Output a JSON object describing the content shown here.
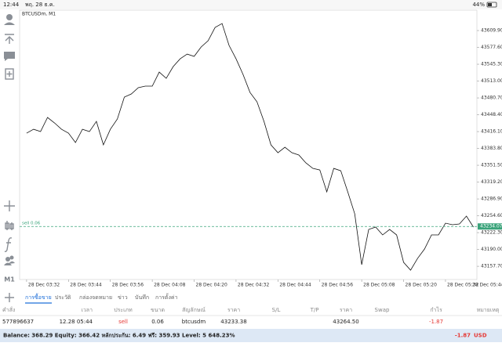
{
  "status_bar": {
    "time": "12:44",
    "date": "พฤ. 28 ธ.ค.",
    "battery": "44%"
  },
  "sidebar": {
    "timeframe": "M1"
  },
  "chart_data": {
    "type": "line",
    "title": "BTCUSDm, M1",
    "color": "#111111",
    "x": [
      0,
      2,
      4,
      6,
      8,
      10,
      12,
      14,
      16,
      18,
      20,
      22,
      24,
      26,
      28,
      30,
      32,
      34,
      36,
      38,
      40,
      42,
      44,
      46,
      48,
      50,
      52,
      54,
      56,
      58,
      60,
      62,
      64,
      66,
      68,
      70,
      72,
      74,
      76,
      78,
      80,
      82,
      84,
      86,
      88,
      90,
      92,
      94,
      96,
      98,
      100,
      102,
      104,
      106,
      108,
      110,
      112,
      114,
      116,
      118,
      120,
      122,
      124,
      126,
      128
    ],
    "values": [
      43413.1,
      43420.6,
      43416.1,
      43443.2,
      43432.7,
      43420.6,
      43413.1,
      43395.1,
      43420.6,
      43416.1,
      43435.7,
      43390.6,
      43420.6,
      43440.2,
      43482.2,
      43488.2,
      43500.3,
      43503.3,
      43503.3,
      43530.3,
      43518.3,
      43540.8,
      43555.8,
      43564.8,
      43560.3,
      43578.4,
      43590.4,
      43615.9,
      43623.4,
      43581.4,
      43555.8,
      43525.8,
      43491.2,
      43473.2,
      43435.7,
      43390.6,
      43375.6,
      43386.1,
      43375.6,
      43371.1,
      43356.1,
      43345.5,
      43342.5,
      43300.5,
      43345.5,
      43341.0,
      43300.5,
      43258.4,
      43160.8,
      43228.4,
      43232.9,
      43217.9,
      43228.4,
      43217.9,
      43165.3,
      43150.3,
      43172.8,
      43190.8,
      43217.9,
      43217.9,
      43240.4,
      43237.4,
      43238.9,
      43253.9,
      43232.9
    ],
    "xlim": [
      -2,
      129
    ],
    "xticks": [
      {
        "value": 0,
        "label": "28 Dec 03:32"
      },
      {
        "value": 12,
        "label": "28 Dec 03:44"
      },
      {
        "value": 24,
        "label": "28 Dec 03:56"
      },
      {
        "value": 36,
        "label": "28 Dec 04:08"
      },
      {
        "value": 48,
        "label": "28 Dec 04:20"
      },
      {
        "value": 60,
        "label": "28 Dec 04:32"
      },
      {
        "value": 72,
        "label": "28 Dec 04:44"
      },
      {
        "value": 84,
        "label": "28 Dec 04:56"
      },
      {
        "value": 96,
        "label": "28 Dec 05:08"
      },
      {
        "value": 108,
        "label": "28 Dec 05:20"
      },
      {
        "value": 120,
        "label": "28 Dec 05:32"
      },
      {
        "value": 132,
        "label": "28 Dec 05:44"
      }
    ],
    "ylim": [
      43132.3,
      43649
    ],
    "yticks": [
      {
        "value": 43609.9,
        "label": "43609.90"
      },
      {
        "value": 43577.6,
        "label": "43577.60"
      },
      {
        "value": 43545.3,
        "label": "43545.30"
      },
      {
        "value": 43513.0,
        "label": "43513.00"
      },
      {
        "value": 43480.7,
        "label": "43480.70"
      },
      {
        "value": 43448.4,
        "label": "43448.40"
      },
      {
        "value": 43416.1,
        "label": "43416.10"
      },
      {
        "value": 43383.8,
        "label": "43383.80"
      },
      {
        "value": 43351.5,
        "label": "43351.50"
      },
      {
        "value": 43319.2,
        "label": "43319.20"
      },
      {
        "value": 43286.9,
        "label": "43286.90"
      },
      {
        "value": 43254.6,
        "label": "43254.60"
      },
      {
        "value": 43222.3,
        "label": "43222.30"
      },
      {
        "value": 43190.0,
        "label": "43190.00"
      },
      {
        "value": 43157.7,
        "label": "43157.70"
      }
    ],
    "price_line": {
      "value": 43234.07,
      "label": "sell 0.06",
      "color": "#3aa37a"
    }
  },
  "tabs": {
    "items": [
      "การซื้อขาย",
      "ประวัติ",
      "กล่องจดหมาย",
      "ข่าว",
      "บันทึก",
      "การตั้งค่า"
    ],
    "active": 0
  },
  "table": {
    "columns": [
      "คำสั่ง",
      "เวลา",
      "ประเภท",
      "ขนาด",
      "สัญลักษณ์",
      "ราคา",
      "S/L",
      "T/P",
      "ราคา",
      "Swap",
      "กำไร",
      "หมายเหตุ"
    ],
    "rows": [
      [
        "577896637",
        "12.28 05:44",
        "sell",
        "0.06",
        "btcusdm",
        "43233.38",
        null,
        null,
        "43264.50",
        null,
        "-1.87",
        null
      ]
    ]
  },
  "footer": {
    "summary": "Balance: 368.29 Equity: 366.42 หลักประกัน: 6.49 ฟรี: 359.93 Level: 5 648.23%",
    "profit": "-1.87",
    "currency": "USD"
  }
}
